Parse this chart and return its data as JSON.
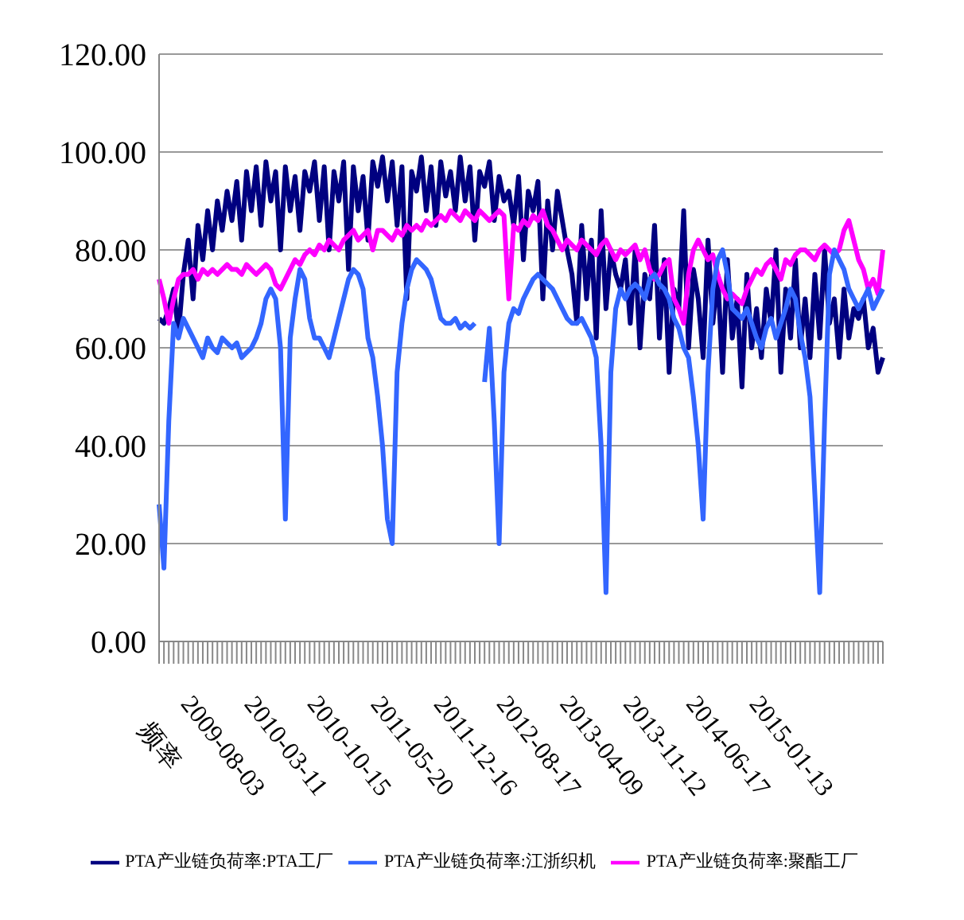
{
  "chart_data": {
    "type": "line",
    "categories": [
      "频率",
      null,
      null,
      null,
      null,
      null,
      null,
      null,
      null,
      null,
      null,
      null,
      null,
      "2009-08-03",
      null,
      null,
      null,
      null,
      null,
      null,
      null,
      null,
      null,
      null,
      null,
      null,
      "2010-03-11",
      null,
      null,
      null,
      null,
      null,
      null,
      null,
      null,
      null,
      null,
      null,
      null,
      "2010-10-15",
      null,
      null,
      null,
      null,
      null,
      null,
      null,
      null,
      null,
      null,
      null,
      null,
      "2011-05-20",
      null,
      null,
      null,
      null,
      null,
      null,
      null,
      null,
      null,
      null,
      null,
      null,
      "2011-12-16",
      null,
      null,
      null,
      null,
      null,
      null,
      null,
      null,
      null,
      null,
      null,
      null,
      "2012-08-17",
      null,
      null,
      null,
      null,
      null,
      null,
      null,
      null,
      null,
      null,
      null,
      null,
      "2013-04-09",
      null,
      null,
      null,
      null,
      null,
      null,
      null,
      null,
      null,
      null,
      null,
      null,
      "2013-11-12",
      null,
      null,
      null,
      null,
      null,
      null,
      null,
      null,
      null,
      null,
      null,
      null,
      "2014-06-17",
      null,
      null,
      null,
      null,
      null,
      null,
      null,
      null,
      null,
      null,
      null,
      null,
      "2015-01-13",
      null,
      null,
      null,
      null,
      null,
      null,
      null,
      null,
      null,
      null,
      null,
      null,
      null,
      null,
      null,
      null,
      null,
      null,
      null
    ],
    "series": [
      {
        "name": "PTA产业链负荷率:PTA工厂",
        "color": "#000080",
        "values": [
          66,
          65,
          68,
          72,
          63,
          75,
          82,
          70,
          85,
          78,
          88,
          80,
          90,
          84,
          92,
          86,
          94,
          82,
          96,
          88,
          97,
          85,
          98,
          90,
          96,
          80,
          97,
          88,
          95,
          84,
          96,
          92,
          98,
          86,
          97,
          80,
          96,
          90,
          98,
          76,
          97,
          88,
          95,
          82,
          98,
          93,
          99,
          90,
          98,
          85,
          97,
          70,
          96,
          92,
          99,
          88,
          97,
          85,
          98,
          91,
          96,
          88,
          99,
          90,
          97,
          82,
          96,
          93,
          98,
          86,
          95,
          90,
          92,
          85,
          95,
          78,
          92,
          88,
          94,
          70,
          90,
          80,
          92,
          86,
          80,
          75,
          65,
          85,
          70,
          82,
          62,
          88,
          68,
          80,
          75,
          72,
          78,
          65,
          80,
          60,
          75,
          70,
          85,
          62,
          78,
          55,
          72,
          68,
          88,
          60,
          76,
          70,
          58,
          82,
          65,
          75,
          55,
          78,
          62,
          70,
          52,
          75,
          60,
          68,
          58,
          72,
          65,
          80,
          55,
          72,
          62,
          78,
          60,
          70,
          58,
          75,
          62,
          80,
          65,
          70,
          58,
          72,
          62,
          68,
          66,
          70,
          60,
          64,
          55,
          58
        ]
      },
      {
        "name": "PTA产业链负荷率:聚酯工厂",
        "color": "#ff00ff",
        "values": [
          74,
          70,
          65,
          70,
          74,
          75,
          75,
          76,
          74,
          76,
          75,
          76,
          75,
          76,
          77,
          76,
          76,
          75,
          77,
          76,
          75,
          76,
          77,
          76,
          73,
          72,
          74,
          76,
          78,
          77,
          79,
          80,
          79,
          81,
          80,
          82,
          81,
          80,
          82,
          83,
          84,
          82,
          83,
          84,
          80,
          84,
          84,
          83,
          82,
          84,
          83,
          85,
          84,
          85,
          84,
          86,
          85,
          86,
          87,
          86,
          88,
          87,
          86,
          88,
          87,
          86,
          88,
          87,
          86,
          87,
          88,
          87,
          70,
          85,
          84,
          86,
          85,
          87,
          86,
          88,
          85,
          84,
          82,
          80,
          82,
          81,
          80,
          82,
          81,
          80,
          79,
          81,
          82,
          80,
          78,
          80,
          79,
          80,
          81,
          78,
          80,
          76,
          74,
          75,
          77,
          78,
          70,
          68,
          65,
          75,
          80,
          82,
          80,
          78,
          79,
          75,
          72,
          70,
          71,
          70,
          69,
          72,
          74,
          76,
          75,
          77,
          78,
          76,
          74,
          78,
          77,
          79,
          80,
          80,
          79,
          78,
          80,
          81,
          80,
          79,
          80,
          84,
          86,
          82,
          78,
          76,
          72,
          74,
          71,
          80
        ]
      },
      {
        "name": "PTA产业链负荷率:江浙织机",
        "color": "#3366ff",
        "values": [
          28,
          15,
          45,
          65,
          62,
          66,
          64,
          62,
          60,
          58,
          62,
          60,
          59,
          62,
          61,
          60,
          61,
          58,
          59,
          60,
          62,
          65,
          70,
          72,
          70,
          60,
          25,
          62,
          70,
          76,
          74,
          66,
          62,
          62,
          60,
          58,
          62,
          66,
          70,
          74,
          76,
          75,
          72,
          62,
          58,
          50,
          40,
          25,
          20,
          55,
          65,
          72,
          76,
          78,
          77,
          76,
          74,
          70,
          66,
          65,
          65,
          66,
          64,
          65,
          64,
          65,
          null,
          53,
          64,
          45,
          20,
          55,
          65,
          68,
          67,
          70,
          72,
          74,
          75,
          74,
          73,
          72,
          70,
          68,
          66,
          65,
          65,
          66,
          64,
          62,
          58,
          40,
          10,
          55,
          68,
          72,
          70,
          72,
          73,
          72,
          70,
          74,
          75,
          73,
          72,
          70,
          66,
          64,
          60,
          58,
          50,
          40,
          25,
          55,
          72,
          78,
          80,
          75,
          68,
          67,
          66,
          68,
          65,
          62,
          60,
          64,
          66,
          62,
          65,
          68,
          72,
          70,
          63,
          58,
          50,
          30,
          10,
          45,
          75,
          80,
          78,
          76,
          72,
          70,
          68,
          70,
          72,
          68,
          70,
          72
        ]
      }
    ],
    "ylim": [
      0,
      120
    ],
    "yticks": [
      {
        "value": 0,
        "label": "0.00"
      },
      {
        "value": 20,
        "label": "20.00"
      },
      {
        "value": 40,
        "label": "40.00"
      },
      {
        "value": 60,
        "label": "60.00"
      },
      {
        "value": 80,
        "label": "80.00"
      },
      {
        "value": 100,
        "label": "100.00"
      },
      {
        "value": 120,
        "label": "120.00"
      }
    ],
    "grid": "y",
    "legend": "bottom",
    "marker": "none",
    "line_style": "solid"
  }
}
